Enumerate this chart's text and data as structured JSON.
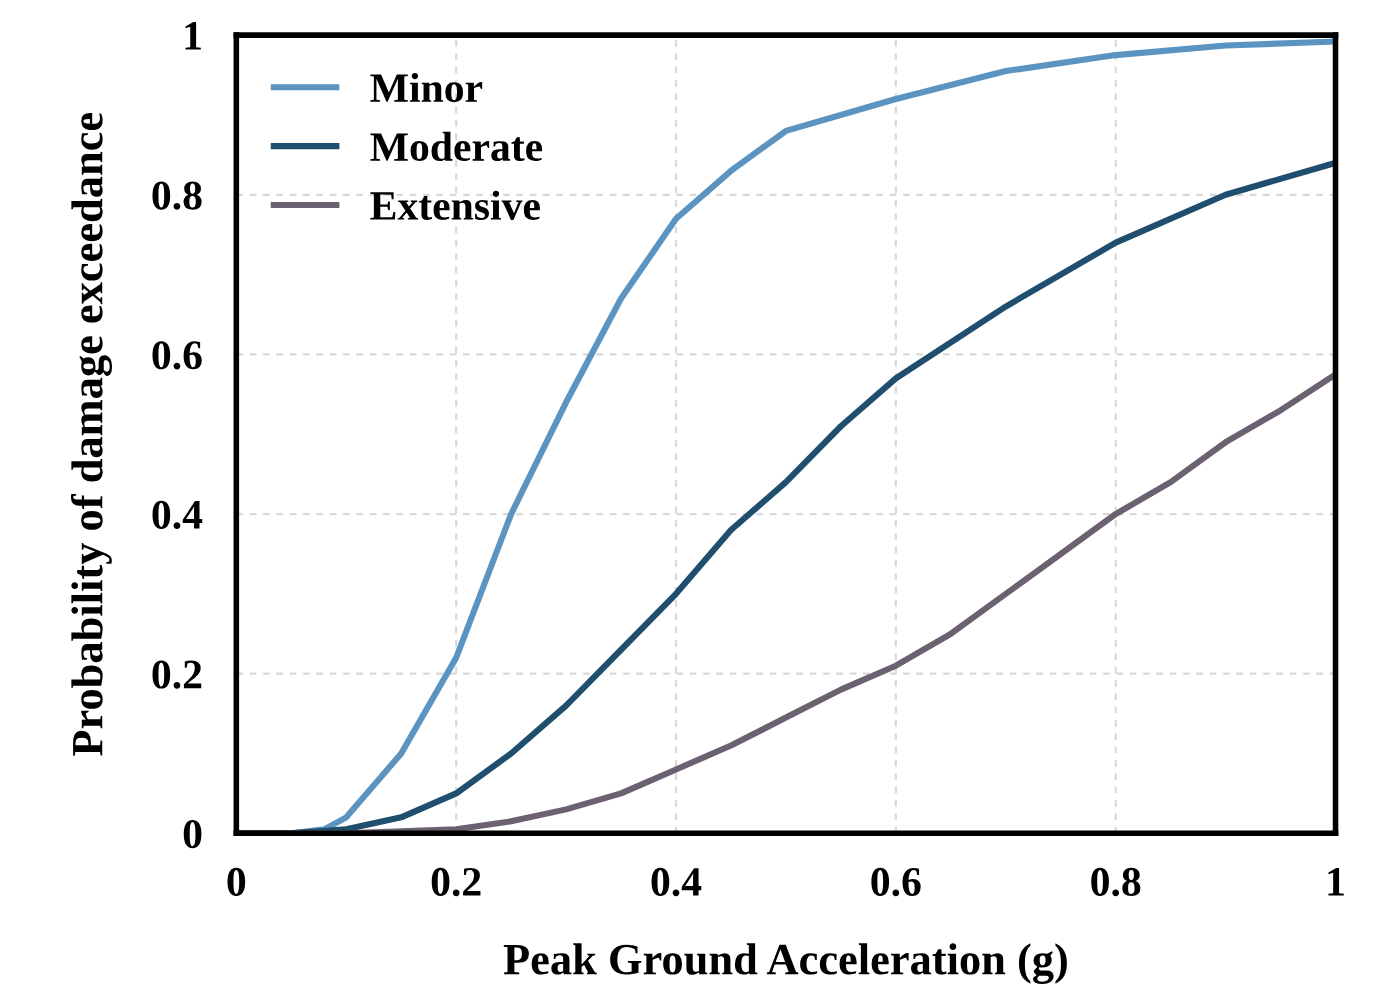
{
  "chart_data": {
    "type": "line",
    "xlabel": "Peak Ground Acceleration (g)",
    "ylabel": "Probability of damage exceedance",
    "xlim": [
      0,
      1
    ],
    "ylim": [
      0,
      1
    ],
    "xticks": [
      0,
      0.2,
      0.4,
      0.6,
      0.8,
      1
    ],
    "yticks": [
      0,
      0.2,
      0.4,
      0.6,
      0.8,
      1
    ],
    "grid": true,
    "legend": "top left",
    "marker": "none",
    "line_style": "solid",
    "series": [
      {
        "name": "Minor",
        "color": "#5b93c1",
        "x": [
          0,
          0.05,
          0.08,
          0.1,
          0.15,
          0.2,
          0.25,
          0.3,
          0.35,
          0.4,
          0.45,
          0.5,
          0.6,
          0.7,
          0.8,
          0.9,
          1.0
        ],
        "values": [
          0,
          0,
          0.005,
          0.02,
          0.1,
          0.22,
          0.4,
          0.54,
          0.67,
          0.77,
          0.83,
          0.88,
          0.92,
          0.955,
          0.975,
          0.987,
          0.992
        ]
      },
      {
        "name": "Moderate",
        "color": "#1f4e6e",
        "x": [
          0,
          0.05,
          0.1,
          0.15,
          0.2,
          0.25,
          0.3,
          0.35,
          0.4,
          0.45,
          0.5,
          0.55,
          0.6,
          0.7,
          0.8,
          0.9,
          1.0
        ],
        "values": [
          0,
          0,
          0.005,
          0.02,
          0.05,
          0.1,
          0.16,
          0.23,
          0.3,
          0.38,
          0.44,
          0.51,
          0.57,
          0.66,
          0.74,
          0.8,
          0.84
        ]
      },
      {
        "name": "Extensive",
        "color": "#6b6170",
        "x": [
          0,
          0.1,
          0.2,
          0.25,
          0.3,
          0.35,
          0.4,
          0.45,
          0.5,
          0.55,
          0.6,
          0.65,
          0.7,
          0.75,
          0.8,
          0.85,
          0.9,
          0.95,
          1.0
        ],
        "values": [
          0,
          0,
          0.005,
          0.015,
          0.03,
          0.05,
          0.08,
          0.11,
          0.145,
          0.18,
          0.21,
          0.25,
          0.3,
          0.35,
          0.4,
          0.44,
          0.49,
          0.53,
          0.575
        ]
      }
    ]
  }
}
